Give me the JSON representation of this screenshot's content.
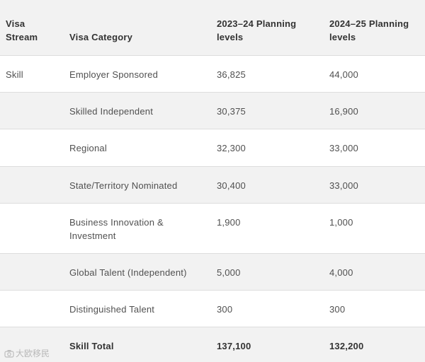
{
  "table": {
    "headers": {
      "stream": "Visa Stream",
      "category": "Visa Category",
      "year1": "2023–24 Planning levels",
      "year2": "2024–25 Planning levels"
    },
    "rows": [
      {
        "stream": "Skill",
        "category": "Employer Sponsored",
        "year1": "36,825",
        "year2": "44,000"
      },
      {
        "stream": "",
        "category": "Skilled Independent",
        "year1": "30,375",
        "year2": "16,900"
      },
      {
        "stream": "",
        "category": "Regional",
        "year1": "32,300",
        "year2": "33,000"
      },
      {
        "stream": "",
        "category": "State/Territory Nominated",
        "year1": "30,400",
        "year2": "33,000"
      },
      {
        "stream": "",
        "category": "Business Innovation & Investment",
        "year1": "1,900",
        "year2": "1,000"
      },
      {
        "stream": "",
        "category": "Global Talent (Independent)",
        "year1": "5,000",
        "year2": "4,000"
      },
      {
        "stream": "",
        "category": "Distinguished Talent",
        "year1": "300",
        "year2": "300"
      }
    ],
    "total": {
      "stream": "",
      "category": "Skill Total",
      "year1": "137,100",
      "year2": "132,200"
    }
  },
  "watermark": {
    "text": "大欧移民",
    "icon": "camera-icon"
  }
}
